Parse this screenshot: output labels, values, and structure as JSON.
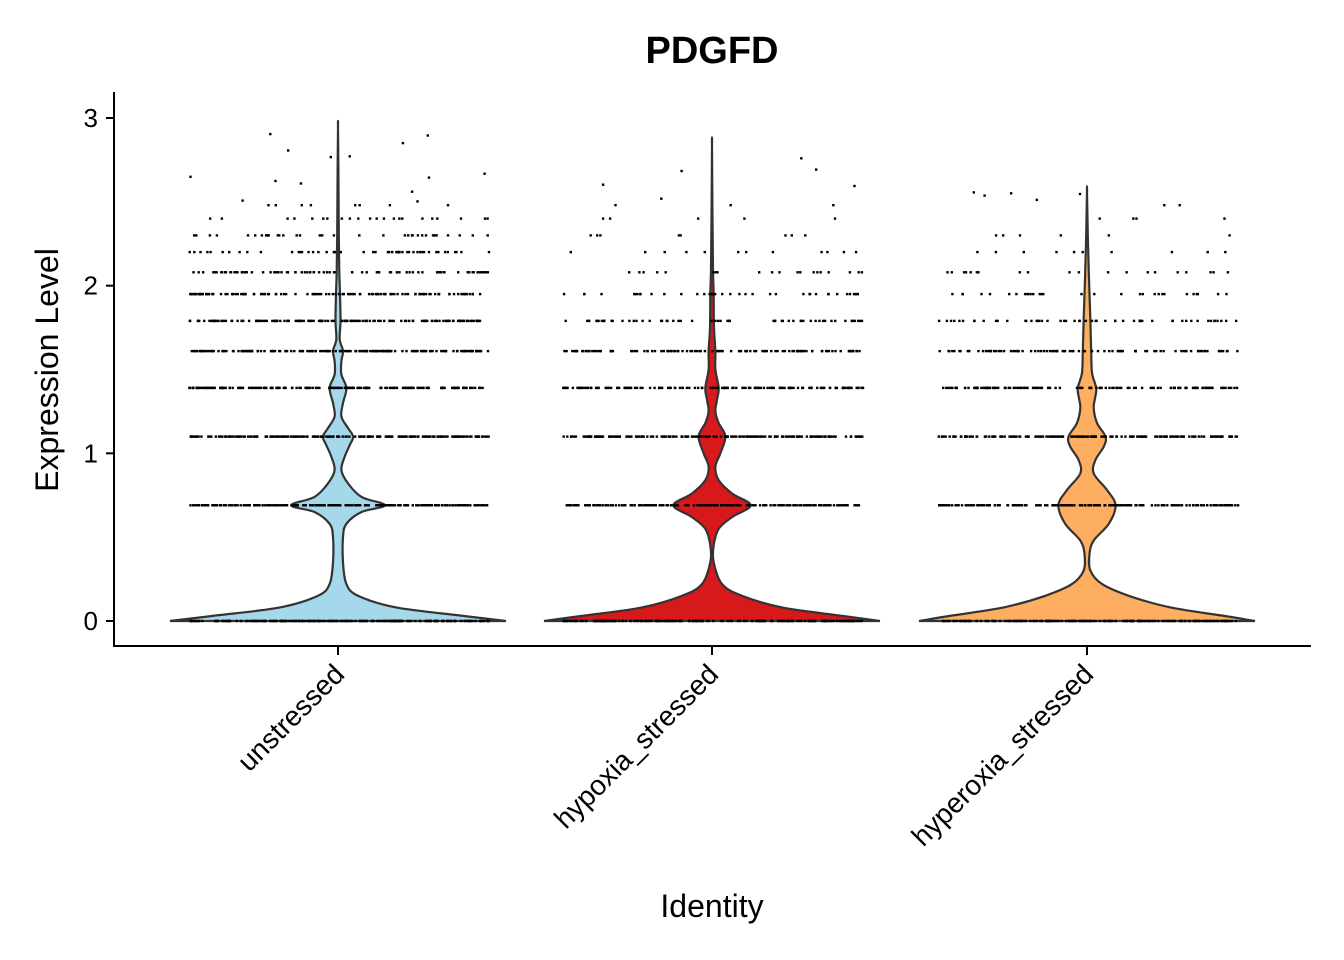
{
  "chart_data": {
    "type": "violin",
    "title": "PDGFD",
    "xlabel": "Identity",
    "ylabel": "Expression Level",
    "ylim": [
      -0.14,
      3.15
    ],
    "yticks": [
      0,
      1,
      2,
      3
    ],
    "ytick_labels": [
      "0",
      "1",
      "2",
      "3"
    ],
    "categories": [
      "unstressed",
      "hypoxia_stressed",
      "hyperoxia_stressed"
    ],
    "colors": [
      "#a6d8ec",
      "#d7191c",
      "#fdae61"
    ],
    "expression_levels": [
      0,
      0.69,
      1.1,
      1.39,
      1.61,
      1.79,
      1.95,
      2.08,
      2.2,
      2.3,
      2.4,
      2.48
    ],
    "max_values": [
      2.94,
      2.83,
      2.56
    ],
    "violins": [
      {
        "name": "unstressed",
        "density": [
          [
            0,
            1.0
          ],
          [
            0.03,
            0.75
          ],
          [
            0.08,
            0.35
          ],
          [
            0.15,
            0.12
          ],
          [
            0.22,
            0.05
          ],
          [
            0.35,
            0.03
          ],
          [
            0.5,
            0.03
          ],
          [
            0.58,
            0.05
          ],
          [
            0.65,
            0.14
          ],
          [
            0.69,
            0.28
          ],
          [
            0.74,
            0.14
          ],
          [
            0.82,
            0.06
          ],
          [
            0.9,
            0.02
          ],
          [
            0.98,
            0.04
          ],
          [
            1.05,
            0.07
          ],
          [
            1.1,
            0.09
          ],
          [
            1.15,
            0.06
          ],
          [
            1.22,
            0.02
          ],
          [
            1.3,
            0.03
          ],
          [
            1.39,
            0.05
          ],
          [
            1.47,
            0.02
          ],
          [
            1.55,
            0.02
          ],
          [
            1.61,
            0.03
          ],
          [
            1.68,
            0.01
          ],
          [
            1.79,
            0.015
          ],
          [
            1.95,
            0.012
          ],
          [
            2.08,
            0.008
          ],
          [
            2.3,
            0.005
          ],
          [
            2.6,
            0.003
          ],
          [
            2.94,
            0.0
          ]
        ]
      },
      {
        "name": "hypoxia_stressed",
        "density": [
          [
            0,
            1.0
          ],
          [
            0.03,
            0.78
          ],
          [
            0.08,
            0.42
          ],
          [
            0.15,
            0.18
          ],
          [
            0.22,
            0.06
          ],
          [
            0.35,
            0.01
          ],
          [
            0.45,
            0.01
          ],
          [
            0.55,
            0.04
          ],
          [
            0.62,
            0.12
          ],
          [
            0.69,
            0.23
          ],
          [
            0.76,
            0.12
          ],
          [
            0.84,
            0.04
          ],
          [
            0.92,
            0.02
          ],
          [
            1.0,
            0.05
          ],
          [
            1.1,
            0.08
          ],
          [
            1.18,
            0.04
          ],
          [
            1.25,
            0.02
          ],
          [
            1.32,
            0.03
          ],
          [
            1.39,
            0.04
          ],
          [
            1.5,
            0.02
          ],
          [
            1.61,
            0.02
          ],
          [
            1.75,
            0.012
          ],
          [
            1.95,
            0.01
          ],
          [
            2.1,
            0.006
          ],
          [
            2.4,
            0.003
          ],
          [
            2.83,
            0.0
          ]
        ]
      },
      {
        "name": "hyperoxia_stressed",
        "density": [
          [
            0,
            1.0
          ],
          [
            0.03,
            0.82
          ],
          [
            0.08,
            0.5
          ],
          [
            0.15,
            0.25
          ],
          [
            0.22,
            0.09
          ],
          [
            0.3,
            0.02
          ],
          [
            0.4,
            0.015
          ],
          [
            0.48,
            0.04
          ],
          [
            0.58,
            0.13
          ],
          [
            0.69,
            0.17
          ],
          [
            0.78,
            0.12
          ],
          [
            0.88,
            0.04
          ],
          [
            0.96,
            0.05
          ],
          [
            1.04,
            0.1
          ],
          [
            1.1,
            0.11
          ],
          [
            1.18,
            0.06
          ],
          [
            1.27,
            0.04
          ],
          [
            1.34,
            0.05
          ],
          [
            1.39,
            0.055
          ],
          [
            1.48,
            0.03
          ],
          [
            1.61,
            0.025
          ],
          [
            1.79,
            0.02
          ],
          [
            1.95,
            0.015
          ],
          [
            2.1,
            0.01
          ],
          [
            2.3,
            0.005
          ],
          [
            2.56,
            0.0
          ]
        ]
      }
    ]
  }
}
